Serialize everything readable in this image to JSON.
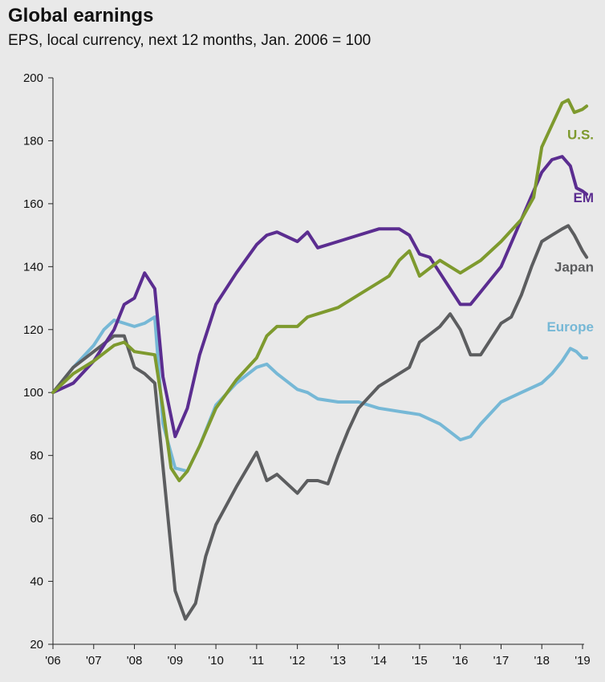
{
  "title": "Global earnings",
  "subtitle": "EPS, local currency, next 12 months, Jan. 2006 = 100",
  "chart_data": {
    "type": "line",
    "ylim": [
      20,
      200
    ],
    "yticks": [
      20,
      40,
      60,
      80,
      100,
      120,
      140,
      160,
      180,
      200
    ],
    "xlim": [
      2006,
      2019.1
    ],
    "xticks": [
      {
        "v": 2006,
        "label": "'06"
      },
      {
        "v": 2007,
        "label": "'07"
      },
      {
        "v": 2008,
        "label": "'08"
      },
      {
        "v": 2009,
        "label": "'09"
      },
      {
        "v": 2010,
        "label": "'10"
      },
      {
        "v": 2011,
        "label": "'11"
      },
      {
        "v": 2012,
        "label": "'12"
      },
      {
        "v": 2013,
        "label": "'13"
      },
      {
        "v": 2014,
        "label": "'14"
      },
      {
        "v": 2015,
        "label": "'15"
      },
      {
        "v": 2016,
        "label": "'16"
      },
      {
        "v": 2017,
        "label": "'17"
      },
      {
        "v": 2018,
        "label": "'18"
      },
      {
        "v": 2019,
        "label": "'19"
      }
    ],
    "grid": false,
    "series": [
      {
        "name": "U.S.",
        "color": "#7e9a2e",
        "x": [
          2006,
          2006.5,
          2007,
          2007.5,
          2007.75,
          2008,
          2008.5,
          2008.7,
          2008.9,
          2009.1,
          2009.3,
          2009.6,
          2010,
          2010.5,
          2011,
          2011.25,
          2011.5,
          2012,
          2012.25,
          2012.5,
          2013,
          2013.5,
          2014,
          2014.25,
          2014.5,
          2014.75,
          2015,
          2015.5,
          2016,
          2016.5,
          2017,
          2017.5,
          2017.8,
          2018,
          2018.25,
          2018.5,
          2018.65,
          2018.8,
          2019,
          2019.1
        ],
        "y": [
          100,
          106,
          110,
          115,
          116,
          113,
          112,
          95,
          76,
          72,
          75,
          83,
          95,
          104,
          111,
          118,
          121,
          121,
          124,
          125,
          127,
          131,
          135,
          137,
          142,
          145,
          137,
          142,
          138,
          142,
          148,
          155,
          162,
          178,
          185,
          192,
          193,
          189,
          190,
          191
        ]
      },
      {
        "name": "EM",
        "color": "#5b2d90",
        "x": [
          2006,
          2006.5,
          2007,
          2007.5,
          2007.75,
          2008,
          2008.25,
          2008.5,
          2008.7,
          2009,
          2009.3,
          2009.6,
          2010,
          2010.5,
          2011,
          2011.25,
          2011.5,
          2012,
          2012.25,
          2012.5,
          2013,
          2013.5,
          2014,
          2014.5,
          2014.75,
          2015,
          2015.25,
          2015.5,
          2016,
          2016.25,
          2016.5,
          2017,
          2017.5,
          2018,
          2018.25,
          2018.5,
          2018.7,
          2018.85,
          2019,
          2019.1
        ],
        "y": [
          100,
          103,
          110,
          120,
          128,
          130,
          138,
          133,
          105,
          86,
          95,
          112,
          128,
          138,
          147,
          150,
          151,
          148,
          151,
          146,
          148,
          150,
          152,
          152,
          150,
          144,
          143,
          138,
          128,
          128,
          132,
          140,
          155,
          170,
          174,
          175,
          172,
          165,
          164,
          163
        ]
      },
      {
        "name": "Japan",
        "color": "#5c5d5f",
        "x": [
          2006,
          2006.5,
          2007,
          2007.5,
          2007.75,
          2008,
          2008.25,
          2008.5,
          2008.75,
          2009,
          2009.25,
          2009.5,
          2009.75,
          2010,
          2010.5,
          2011,
          2011.25,
          2011.5,
          2012,
          2012.25,
          2012.5,
          2012.75,
          2013,
          2013.25,
          2013.5,
          2014,
          2014.5,
          2014.75,
          2015,
          2015.5,
          2015.75,
          2016,
          2016.25,
          2016.5,
          2017,
          2017.25,
          2017.5,
          2017.75,
          2018,
          2018.25,
          2018.5,
          2018.65,
          2018.8,
          2019,
          2019.1
        ],
        "y": [
          100,
          108,
          113,
          118,
          118,
          108,
          106,
          103,
          70,
          37,
          28,
          33,
          48,
          58,
          70,
          81,
          72,
          74,
          68,
          72,
          72,
          71,
          80,
          88,
          95,
          102,
          106,
          108,
          116,
          121,
          125,
          120,
          112,
          112,
          122,
          124,
          131,
          140,
          148,
          150,
          152,
          153,
          150,
          145,
          143
        ]
      },
      {
        "name": "Europe",
        "color": "#76b8d6",
        "x": [
          2006,
          2006.5,
          2007,
          2007.25,
          2007.5,
          2007.75,
          2008,
          2008.25,
          2008.5,
          2008.7,
          2009,
          2009.3,
          2009.6,
          2010,
          2010.5,
          2011,
          2011.25,
          2011.5,
          2012,
          2012.25,
          2012.5,
          2013,
          2013.5,
          2014,
          2014.5,
          2015,
          2015.5,
          2016,
          2016.25,
          2016.5,
          2017,
          2017.5,
          2018,
          2018.25,
          2018.5,
          2018.7,
          2018.85,
          2019,
          2019.1
        ],
        "y": [
          100,
          108,
          115,
          120,
          123,
          122,
          121,
          122,
          124,
          90,
          76,
          75,
          83,
          96,
          103,
          108,
          109,
          106,
          101,
          100,
          98,
          97,
          97,
          95,
          94,
          93,
          90,
          85,
          86,
          90,
          97,
          100,
          103,
          106,
          110,
          114,
          113,
          111,
          111
        ]
      }
    ],
    "labels": [
      {
        "series": "U.S.",
        "text": "U.S.",
        "color": "#7e9a2e"
      },
      {
        "series": "EM",
        "text": "EM",
        "color": "#5b2d90"
      },
      {
        "series": "Japan",
        "text": "Japan",
        "color": "#5c5d5f"
      },
      {
        "series": "Europe",
        "text": "Europe",
        "color": "#76b8d6"
      }
    ]
  }
}
